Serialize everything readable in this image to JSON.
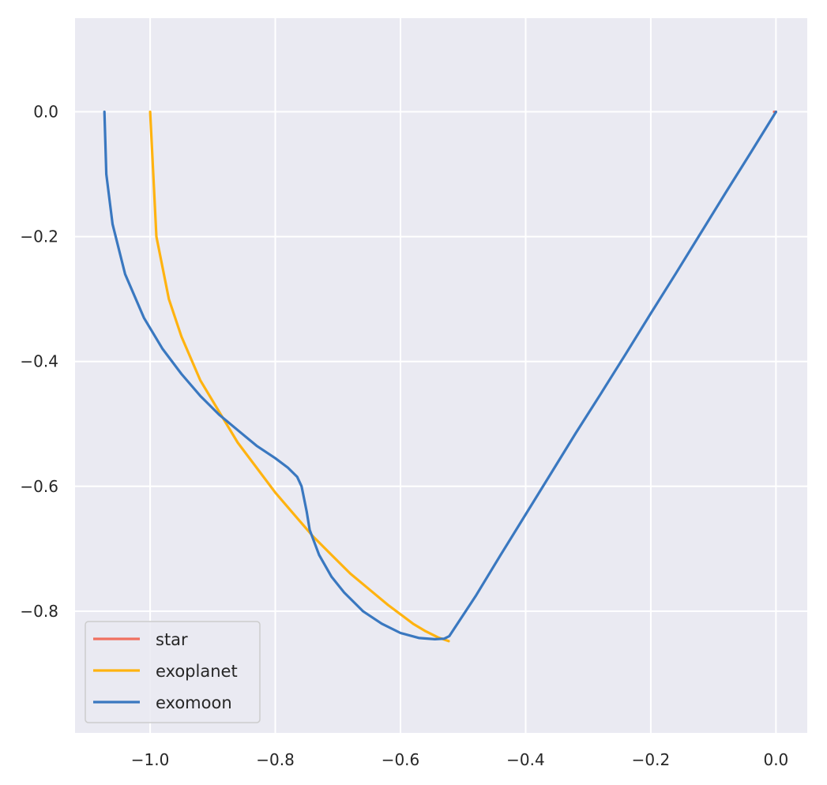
{
  "chart_data": {
    "type": "line",
    "title": "",
    "xlabel": "",
    "ylabel": "",
    "xlim": [
      -1.12,
      0.05
    ],
    "ylim": [
      -0.995,
      0.15
    ],
    "xticks": [
      -1.0,
      -0.8,
      -0.6,
      -0.4,
      -0.2,
      0.0
    ],
    "yticks": [
      0.0,
      -0.2,
      -0.4,
      -0.6,
      -0.8
    ],
    "xtick_labels": [
      "−1.0",
      "−0.8",
      "−0.6",
      "−0.4",
      "−0.2",
      "0.0"
    ],
    "ytick_labels": [
      "0.0",
      "−0.2",
      "−0.4",
      "−0.6",
      "−0.8"
    ],
    "grid": true,
    "legend_position": "lower-left",
    "series": [
      {
        "name": "star",
        "color": "#f07060",
        "x": [
          0.0,
          -0.003
        ],
        "y": [
          0.0,
          0.0
        ]
      },
      {
        "name": "exoplanet",
        "color": "#ffb310",
        "x": [
          -1.0,
          -0.99,
          -0.97,
          -0.95,
          -0.92,
          -0.89,
          -0.86,
          -0.83,
          -0.8,
          -0.77,
          -0.74,
          -0.71,
          -0.68,
          -0.65,
          -0.62,
          -0.6,
          -0.58,
          -0.56,
          -0.54,
          -0.523
        ],
        "y": [
          0.0,
          -0.2,
          -0.3,
          -0.36,
          -0.43,
          -0.48,
          -0.53,
          -0.57,
          -0.61,
          -0.645,
          -0.68,
          -0.71,
          -0.74,
          -0.765,
          -0.79,
          -0.805,
          -0.82,
          -0.832,
          -0.842,
          -0.848
        ]
      },
      {
        "name": "exomoon",
        "color": "#3a78c0",
        "x": [
          -1.073,
          -1.07,
          -1.06,
          -1.04,
          -1.01,
          -0.98,
          -0.95,
          -0.92,
          -0.89,
          -0.86,
          -0.83,
          -0.8,
          -0.78,
          -0.765,
          -0.758,
          -0.754,
          -0.75,
          -0.745,
          -0.73,
          -0.71,
          -0.69,
          -0.66,
          -0.63,
          -0.6,
          -0.57,
          -0.545,
          -0.53,
          -0.522,
          -0.48,
          -0.44,
          -0.4,
          -0.36,
          -0.32,
          -0.28,
          -0.24,
          -0.2,
          -0.16,
          -0.12,
          -0.08,
          -0.04,
          0.0
        ],
        "y": [
          0.0,
          -0.1,
          -0.18,
          -0.26,
          -0.33,
          -0.38,
          -0.42,
          -0.455,
          -0.485,
          -0.51,
          -0.535,
          -0.555,
          -0.57,
          -0.585,
          -0.6,
          -0.62,
          -0.64,
          -0.67,
          -0.71,
          -0.745,
          -0.77,
          -0.8,
          -0.82,
          -0.835,
          -0.843,
          -0.845,
          -0.844,
          -0.84,
          -0.776,
          -0.71,
          -0.645,
          -0.58,
          -0.515,
          -0.452,
          -0.388,
          -0.323,
          -0.259,
          -0.194,
          -0.129,
          -0.065,
          0.0
        ]
      }
    ]
  }
}
